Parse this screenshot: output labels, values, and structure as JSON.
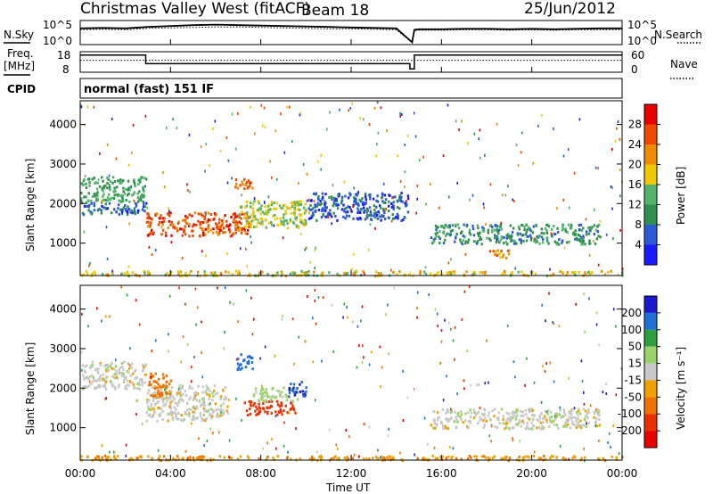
{
  "header": {
    "station": "Christmas Valley West (fitACF)",
    "beam": "Beam 18",
    "date": "25/Jun/2012"
  },
  "left_labels": {
    "nsky": "N.Sky",
    "freq": "Freq.",
    "freq_unit": "[MHz]",
    "cpid": "CPID"
  },
  "right_labels": {
    "nsearch": "N.Search",
    "nave": "Nave"
  },
  "cpid_text": "normal (fast) 151 IF",
  "colors": {
    "power": [
      "#1a1aff",
      "#2a5ad6",
      "#2f8f4f",
      "#53b36b",
      "#f0c800",
      "#f08a00",
      "#f04a00",
      "#e80000"
    ],
    "velocity": [
      "#1a1acc",
      "#1f6fd6",
      "#2f9e3f",
      "#9ad36a",
      "#c8c8c8",
      "#f0a000",
      "#f07000",
      "#e83000",
      "#e80000"
    ]
  },
  "chart_data": [
    {
      "type": "line",
      "name": "noise",
      "ylabel": "N.Sky",
      "y_tick_labels_left": [
        "10^5",
        "10^0"
      ],
      "y_tick_labels_right": [
        "10^5",
        "10^0"
      ],
      "x": [
        0,
        1,
        2,
        3,
        4,
        5,
        6,
        7,
        8,
        9,
        10,
        11,
        12,
        13,
        14,
        14.7,
        14.8,
        15,
        16,
        17,
        18,
        19,
        20,
        21,
        22,
        23,
        24
      ],
      "series": [
        {
          "name": "N.Sky",
          "values": [
            3.5,
            3.6,
            3.5,
            3.8,
            4.0,
            4.2,
            4.3,
            4.2,
            4.1,
            4.0,
            3.9,
            3.8,
            3.7,
            3.6,
            3.5,
            0.5,
            3.2,
            3.3,
            3.3,
            3.4,
            3.4,
            3.3,
            3.4,
            3.3,
            3.4,
            3.5,
            3.5
          ]
        },
        {
          "name": "N.Search",
          "values": [
            3.2,
            3.3,
            3.2,
            3.5,
            3.6,
            3.7,
            3.8,
            3.8,
            3.7,
            3.6,
            3.5,
            3.4,
            3.4,
            3.3,
            3.2,
            0.5,
            3.0,
            3.1,
            3.1,
            3.2,
            3.2,
            3.1,
            3.2,
            3.1,
            3.2,
            3.2,
            3.2
          ]
        }
      ]
    },
    {
      "type": "line",
      "name": "frequency",
      "ylabel": "Freq. [MHz]",
      "y_tick_labels_left": [
        "18",
        "8"
      ],
      "y_tick_labels_right": [
        "60",
        "0"
      ],
      "x": [
        0,
        2.9,
        2.9,
        14.6,
        14.6,
        14.8,
        14.8,
        24
      ],
      "series": [
        {
          "name": "Freq.",
          "values": [
            16,
            16,
            11,
            11,
            8,
            8,
            16,
            16
          ]
        },
        {
          "name": "Nave",
          "values": [
            13,
            13,
            13,
            13,
            13,
            13,
            13,
            13
          ]
        }
      ]
    },
    {
      "type": "heatmap",
      "name": "power",
      "ylabel": "Slant Range [km]",
      "ylim": [
        180,
        4600
      ],
      "xlim": [
        0,
        24
      ],
      "y_ticks": [
        1000,
        2000,
        3000,
        4000
      ],
      "x_tick_labels": [
        "00:00",
        "04:00",
        "08:00",
        "12:00",
        "16:00",
        "20:00",
        "00:00"
      ],
      "colorbar_label": "Power [dB]",
      "colorbar_ticks": [
        "4",
        "8",
        "12",
        "16",
        "20",
        "24",
        "28"
      ],
      "colorbar_range": [
        0,
        32
      ],
      "features": [
        {
          "t0": 0.0,
          "t1": 2.9,
          "r0": 2050,
          "r1": 2700,
          "value": 12
        },
        {
          "t0": 0.0,
          "t1": 2.9,
          "r0": 1750,
          "r1": 2050,
          "value": 7
        },
        {
          "t0": 2.9,
          "t1": 7.5,
          "r0": 1200,
          "r1": 1800,
          "value": 26
        },
        {
          "t0": 7.0,
          "t1": 10.0,
          "r0": 1400,
          "r1": 2100,
          "value": 16
        },
        {
          "t0": 6.8,
          "t1": 7.6,
          "r0": 2400,
          "r1": 2700,
          "value": 24
        },
        {
          "t0": 10.0,
          "t1": 14.5,
          "r0": 1600,
          "r1": 2300,
          "value": 6
        },
        {
          "t0": 15.5,
          "t1": 23.0,
          "r0": 1000,
          "r1": 1500,
          "value": 10
        },
        {
          "t0": 18.0,
          "t1": 19.0,
          "r0": 650,
          "r1": 850,
          "value": 22
        },
        {
          "t0": 0.0,
          "t1": 24.0,
          "r0": 200,
          "r1": 320,
          "value": 18
        }
      ]
    },
    {
      "type": "heatmap",
      "name": "velocity",
      "ylabel": "Slant Range [km]",
      "ylim": [
        180,
        4600
      ],
      "xlim": [
        0,
        24
      ],
      "y_ticks": [
        1000,
        2000,
        3000,
        4000
      ],
      "x_tick_labels": [
        "00:00",
        "04:00",
        "08:00",
        "12:00",
        "16:00",
        "20:00",
        "00:00"
      ],
      "xlabel": "Time UT",
      "colorbar_label": "Velocity [m s⁻¹]",
      "colorbar_ticks": [
        "200",
        "100",
        "50",
        "15",
        "-15",
        "-50",
        "-100",
        "-200"
      ],
      "features": [
        {
          "t0": 0.0,
          "t1": 2.9,
          "r0": 2000,
          "r1": 2700,
          "value": 0
        },
        {
          "t0": 2.9,
          "t1": 6.5,
          "r0": 1200,
          "r1": 2100,
          "value": 0
        },
        {
          "t0": 3.0,
          "t1": 4.0,
          "r0": 1800,
          "r1": 2400,
          "value": -80
        },
        {
          "t0": 7.2,
          "t1": 9.5,
          "r0": 1350,
          "r1": 1700,
          "value": -150
        },
        {
          "t0": 7.6,
          "t1": 9.6,
          "r0": 1700,
          "r1": 2050,
          "value": 30
        },
        {
          "t0": 6.9,
          "t1": 7.6,
          "r0": 2500,
          "r1": 2900,
          "value": 180
        },
        {
          "t0": 9.2,
          "t1": 10.0,
          "r0": 1800,
          "r1": 2200,
          "value": 200
        },
        {
          "t0": 15.5,
          "t1": 23.0,
          "r0": 1000,
          "r1": 1500,
          "value": 0
        },
        {
          "t0": 0.0,
          "t1": 24.0,
          "r0": 200,
          "r1": 320,
          "value": -40
        }
      ]
    }
  ]
}
